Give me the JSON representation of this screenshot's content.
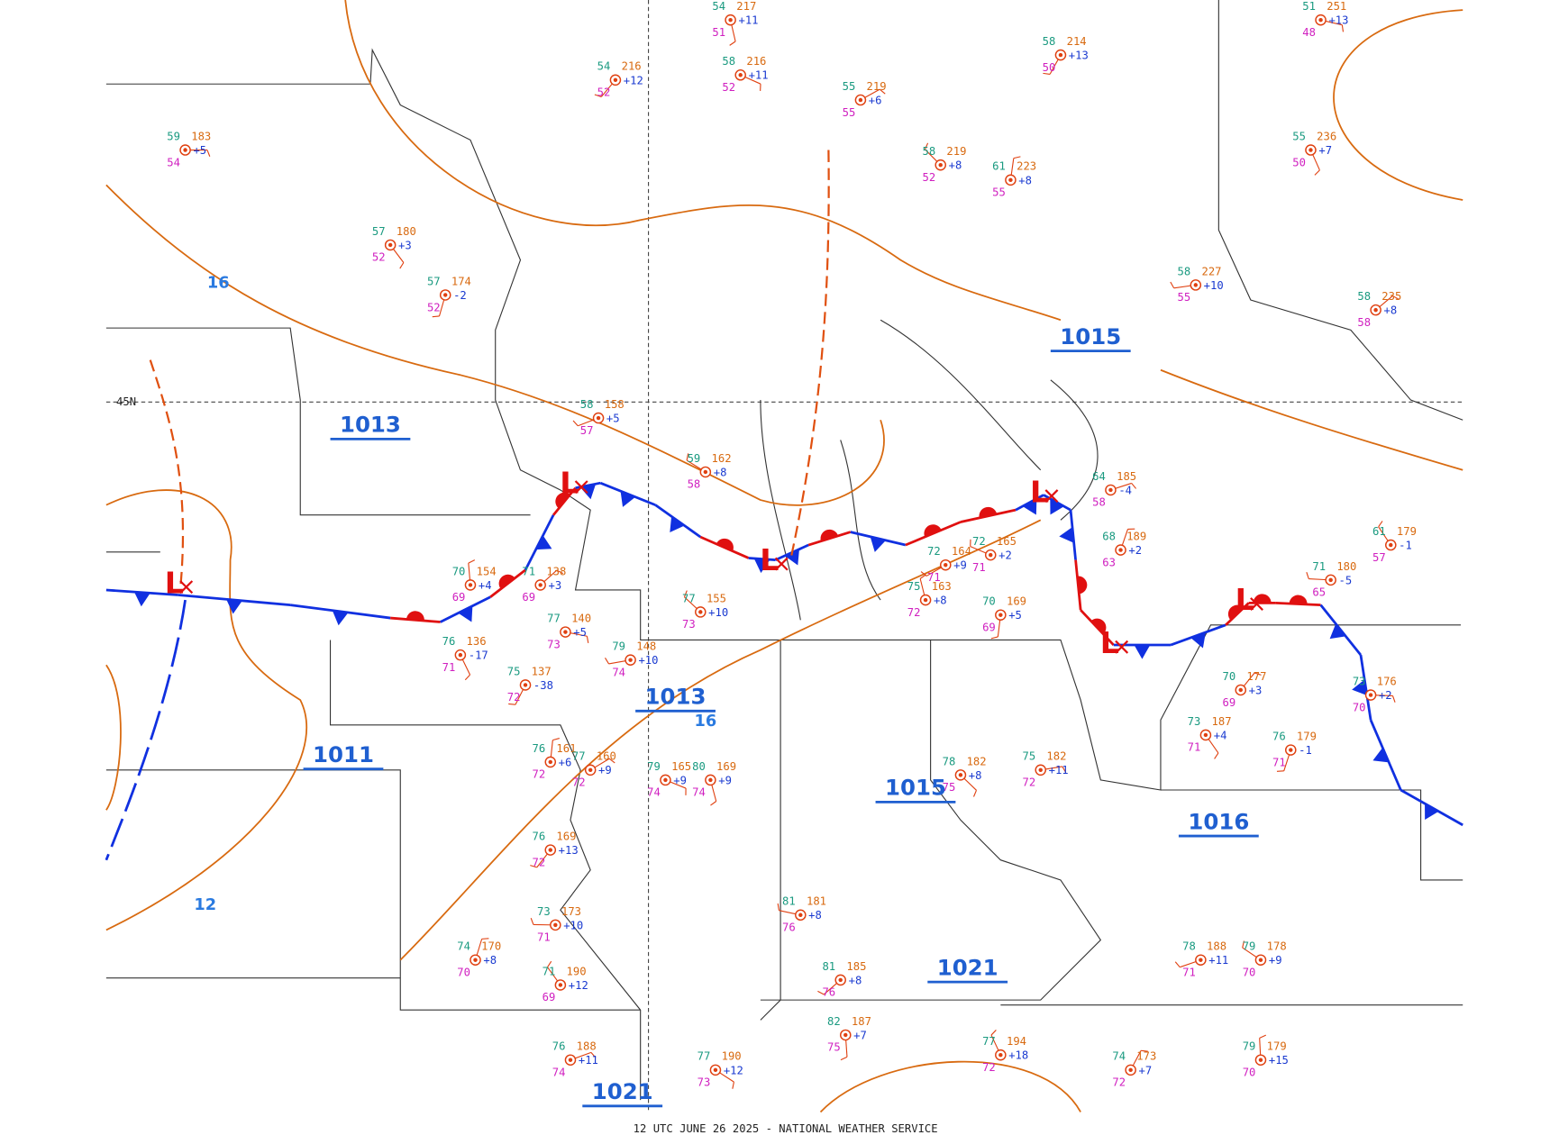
{
  "map": {
    "latitude_label": "45N",
    "pressure_centers": [
      "1013",
      "1011",
      "1013",
      "1015",
      "1015",
      "1016",
      "1021",
      "1021"
    ],
    "lows": [
      "L",
      "L",
      "L",
      "L",
      "L",
      "L"
    ],
    "isobar_labels": [
      "16",
      "16",
      "12"
    ],
    "stations": [
      {
        "temperature": "59",
        "dewpoint": "54",
        "pressure": "183",
        "tendency": "+5"
      },
      {
        "temperature": "57",
        "dewpoint": "52",
        "pressure": "180",
        "tendency": "+3"
      },
      {
        "temperature": "57",
        "dewpoint": "52",
        "pressure": "174",
        "tendency": "-2"
      },
      {
        "temperature": "58",
        "dewpoint": "57",
        "pressure": "158",
        "tendency": "+5"
      },
      {
        "temperature": "59",
        "dewpoint": "58",
        "pressure": "162",
        "tendency": "+8"
      },
      {
        "temperature": "70",
        "dewpoint": "69",
        "pressure": "154",
        "tendency": "+4"
      },
      {
        "temperature": "71",
        "dewpoint": "69",
        "pressure": "138",
        "tendency": "+3"
      },
      {
        "temperature": "77",
        "dewpoint": "73",
        "pressure": "140",
        "tendency": "+5"
      },
      {
        "temperature": "76",
        "dewpoint": "71",
        "pressure": "136",
        "tendency": "-17"
      },
      {
        "temperature": "75",
        "dewpoint": "72",
        "pressure": "137",
        "tendency": "-38"
      },
      {
        "temperature": "79",
        "dewpoint": "74",
        "pressure": "148",
        "tendency": "+10"
      },
      {
        "temperature": "77",
        "dewpoint": "73",
        "pressure": "155",
        "tendency": "+10"
      },
      {
        "temperature": "76",
        "dewpoint": "72",
        "pressure": "161",
        "tendency": "+6"
      },
      {
        "temperature": "77",
        "dewpoint": "72",
        "pressure": "160",
        "tendency": "+9"
      },
      {
        "temperature": "79",
        "dewpoint": "74",
        "pressure": "165",
        "tendency": "+9"
      },
      {
        "temperature": "80",
        "dewpoint": "74",
        "pressure": "169",
        "tendency": "+9"
      },
      {
        "temperature": "76",
        "dewpoint": "72",
        "pressure": "169",
        "tendency": "+13"
      },
      {
        "temperature": "73",
        "dewpoint": "71",
        "pressure": "173",
        "tendency": "+10"
      },
      {
        "temperature": "71",
        "dewpoint": "69",
        "pressure": "190",
        "tendency": "+12"
      },
      {
        "temperature": "74",
        "dewpoint": "70",
        "pressure": "170",
        "tendency": "+8"
      },
      {
        "temperature": "76",
        "dewpoint": "74",
        "pressure": "188",
        "tendency": "+11"
      },
      {
        "temperature": "77",
        "dewpoint": "73",
        "pressure": "190",
        "tendency": "+12"
      },
      {
        "temperature": "82",
        "dewpoint": "75",
        "pressure": "187",
        "tendency": "+7"
      },
      {
        "temperature": "81",
        "dewpoint": "76",
        "pressure": "185",
        "tendency": "+8"
      },
      {
        "temperature": "81",
        "dewpoint": "76",
        "pressure": "181",
        "tendency": "+8"
      },
      {
        "temperature": "77",
        "dewpoint": "72",
        "pressure": "194",
        "tendency": "+18"
      },
      {
        "temperature": "74",
        "dewpoint": "72",
        "pressure": "173",
        "tendency": "+7"
      },
      {
        "temperature": "75",
        "dewpoint": "72",
        "pressure": "182",
        "tendency": "+11"
      },
      {
        "temperature": "78",
        "dewpoint": "75",
        "pressure": "182",
        "tendency": "+8"
      },
      {
        "temperature": "70",
        "dewpoint": "69",
        "pressure": "169",
        "tendency": "+5"
      },
      {
        "temperature": "72",
        "dewpoint": "71",
        "pressure": "164",
        "tendency": "+9"
      },
      {
        "temperature": "72",
        "dewpoint": "71",
        "pressure": "165",
        "tendency": "+2"
      },
      {
        "temperature": "75",
        "dewpoint": "72",
        "pressure": "163",
        "tendency": "+8"
      },
      {
        "temperature": "70",
        "dewpoint": "69",
        "pressure": "177",
        "tendency": "+3"
      },
      {
        "temperature": "73",
        "dewpoint": "70",
        "pressure": "176",
        "tendency": "+2"
      },
      {
        "temperature": "73",
        "dewpoint": "71",
        "pressure": "187",
        "tendency": "+4"
      },
      {
        "temperature": "76",
        "dewpoint": "71",
        "pressure": "179",
        "tendency": "-1"
      },
      {
        "temperature": "78",
        "dewpoint": "71",
        "pressure": "188",
        "tendency": "+11"
      },
      {
        "temperature": "79",
        "dewpoint": "70",
        "pressure": "178",
        "tendency": "+9"
      },
      {
        "temperature": "79",
        "dewpoint": "70",
        "pressure": "179",
        "tendency": "+15"
      },
      {
        "temperature": "58",
        "dewpoint": "58",
        "pressure": "235",
        "tendency": "+8"
      },
      {
        "temperature": "51",
        "dewpoint": "48",
        "pressure": "251",
        "tendency": "+13"
      },
      {
        "temperature": "55",
        "dewpoint": "50",
        "pressure": "236",
        "tendency": "+7"
      },
      {
        "temperature": "58",
        "dewpoint": "50",
        "pressure": "214",
        "tendency": "+13"
      },
      {
        "temperature": "58",
        "dewpoint": "55",
        "pressure": "227",
        "tendency": "+10"
      },
      {
        "temperature": "58",
        "dewpoint": "52",
        "pressure": "219",
        "tendency": "+8"
      },
      {
        "temperature": "61",
        "dewpoint": "55",
        "pressure": "223",
        "tendency": "+8"
      },
      {
        "temperature": "55",
        "dewpoint": "55",
        "pressure": "219",
        "tendency": "+6"
      },
      {
        "temperature": "58",
        "dewpoint": "52",
        "pressure": "216",
        "tendency": "+11"
      },
      {
        "temperature": "54",
        "dewpoint": "51",
        "pressure": "217",
        "tendency": "+11"
      },
      {
        "temperature": "54",
        "dewpoint": "52",
        "pressure": "216",
        "tendency": "+12"
      },
      {
        "temperature": "71",
        "dewpoint": "65",
        "pressure": "180",
        "tendency": "-5"
      },
      {
        "temperature": "61",
        "dewpoint": "57",
        "pressure": "179",
        "tendency": "-1"
      },
      {
        "temperature": "68",
        "dewpoint": "63",
        "pressure": "189",
        "tendency": "+2"
      },
      {
        "temperature": "64",
        "dewpoint": "58",
        "pressure": "185",
        "tendency": "-4"
      }
    ],
    "footer": "12 UTC JUNE 26 2025 - NATIONAL WEATHER SERVICE"
  }
}
